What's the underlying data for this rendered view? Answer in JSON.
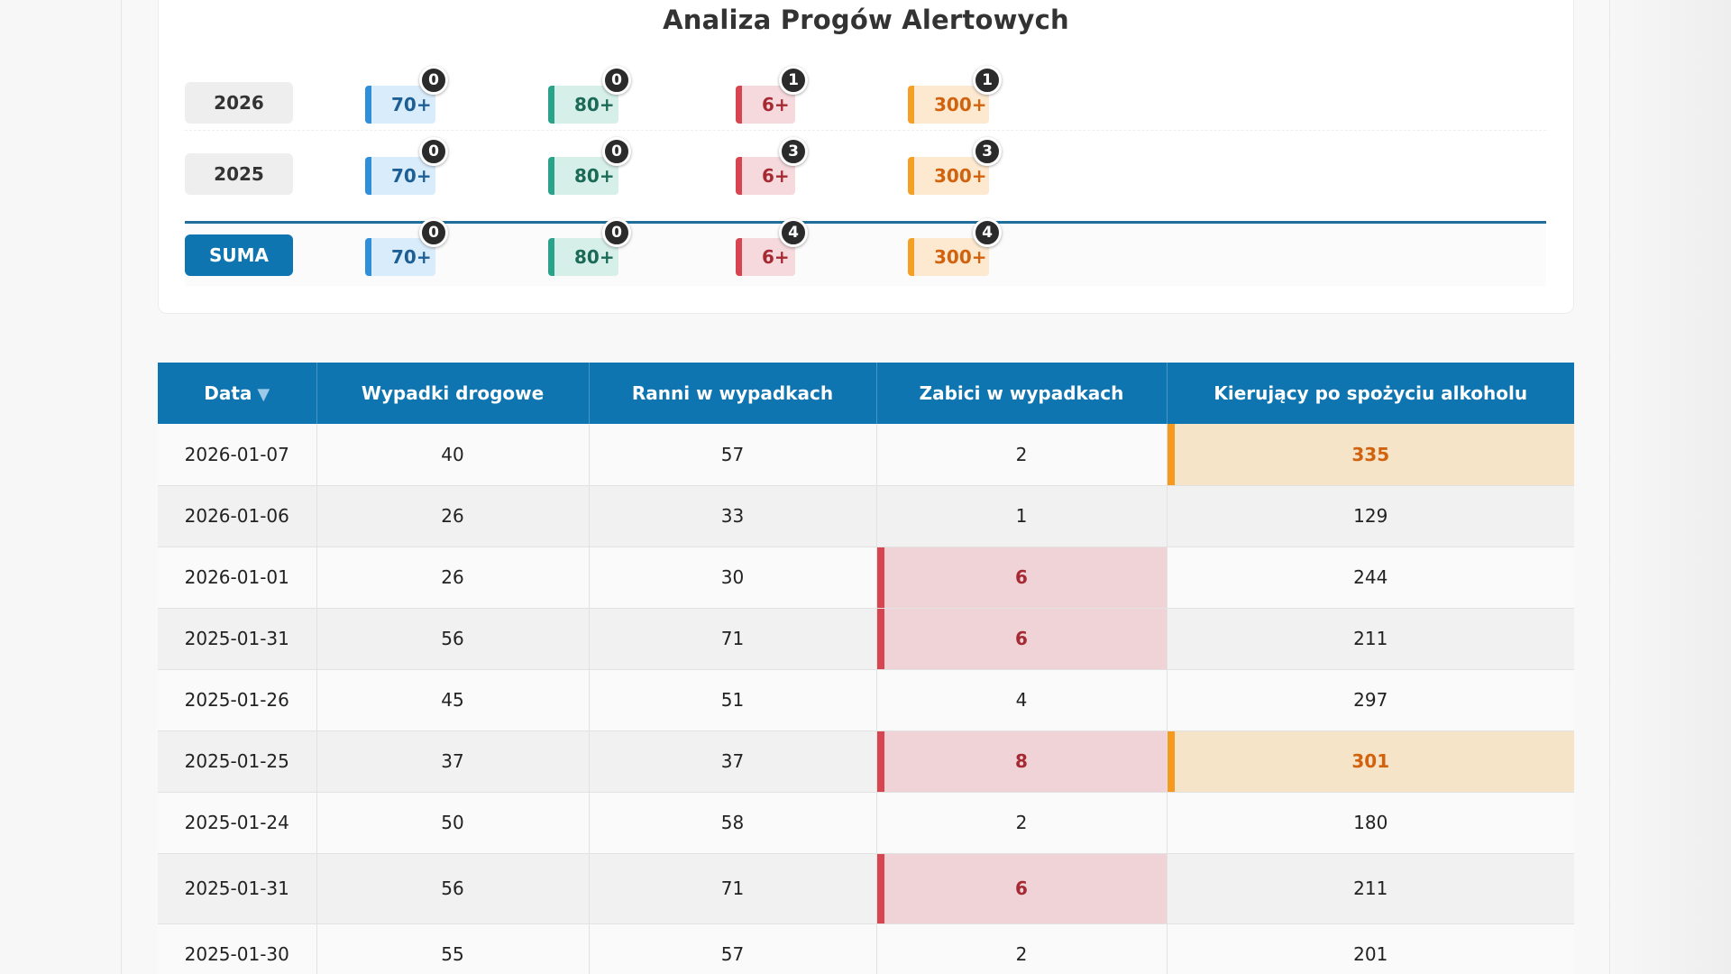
{
  "alert_panel": {
    "title": "Analiza Progów Alertowych",
    "rows": [
      {
        "label": "2026",
        "chips": [
          {
            "label": "70+",
            "count": "0",
            "color": "#2f8fd8"
          },
          {
            "label": "80+",
            "count": "0",
            "color": "#2aa38a"
          },
          {
            "label": "6+",
            "count": "1",
            "color": "#d64550"
          },
          {
            "label": "300+",
            "count": "1",
            "color": "#f4a025"
          }
        ]
      },
      {
        "label": "2025",
        "chips": [
          {
            "label": "70+",
            "count": "0",
            "color": "#2f8fd8"
          },
          {
            "label": "80+",
            "count": "0",
            "color": "#2aa38a"
          },
          {
            "label": "6+",
            "count": "3",
            "color": "#d64550"
          },
          {
            "label": "300+",
            "count": "3",
            "color": "#f4a025"
          }
        ]
      },
      {
        "label": "SUMA",
        "chips": [
          {
            "label": "70+",
            "count": "0",
            "color": "#2f8fd8"
          },
          {
            "label": "80+",
            "count": "0",
            "color": "#2aa38a"
          },
          {
            "label": "6+",
            "count": "4",
            "color": "#d64550"
          },
          {
            "label": "300+",
            "count": "4",
            "color": "#f4a025"
          }
        ]
      }
    ]
  },
  "table": {
    "header_color": "#0e75b0",
    "columns": [
      "Data",
      "Wypadki drogowe",
      "Ranni w wypadkach",
      "Zabici w wypadkach",
      "Kierujący po spożyciu alkoholu"
    ],
    "sort_indicator": "▼",
    "rows": [
      {
        "data": "2026-01-07",
        "wypadki": "40",
        "ranni": "57",
        "zabici": "2",
        "alkohol": "335"
      },
      {
        "data": "2026-01-06",
        "wypadki": "26",
        "ranni": "33",
        "zabici": "1",
        "alkohol": "129"
      },
      {
        "data": "2026-01-01",
        "wypadki": "26",
        "ranni": "30",
        "zabici": "6",
        "alkohol": "244"
      },
      {
        "data": "2025-01-31",
        "wypadki": "56",
        "ranni": "71",
        "zabici": "6",
        "alkohol": "211"
      },
      {
        "data": "2025-01-26",
        "wypadki": "45",
        "ranni": "51",
        "zabici": "4",
        "alkohol": "297"
      },
      {
        "data": "2025-01-25",
        "wypadki": "37",
        "ranni": "37",
        "zabici": "8",
        "alkohol": "301"
      },
      {
        "data": "2025-01-24",
        "wypadki": "50",
        "ranni": "58",
        "zabici": "2",
        "alkohol": "180"
      },
      {
        "data": "2025-01-31",
        "wypadki": "56",
        "ranni": "71",
        "zabici": "6",
        "alkohol": "211"
      },
      {
        "data": "2025-01-30",
        "wypadki": "55",
        "ranni": "57",
        "zabici": "2",
        "alkohol": "201"
      }
    ]
  }
}
